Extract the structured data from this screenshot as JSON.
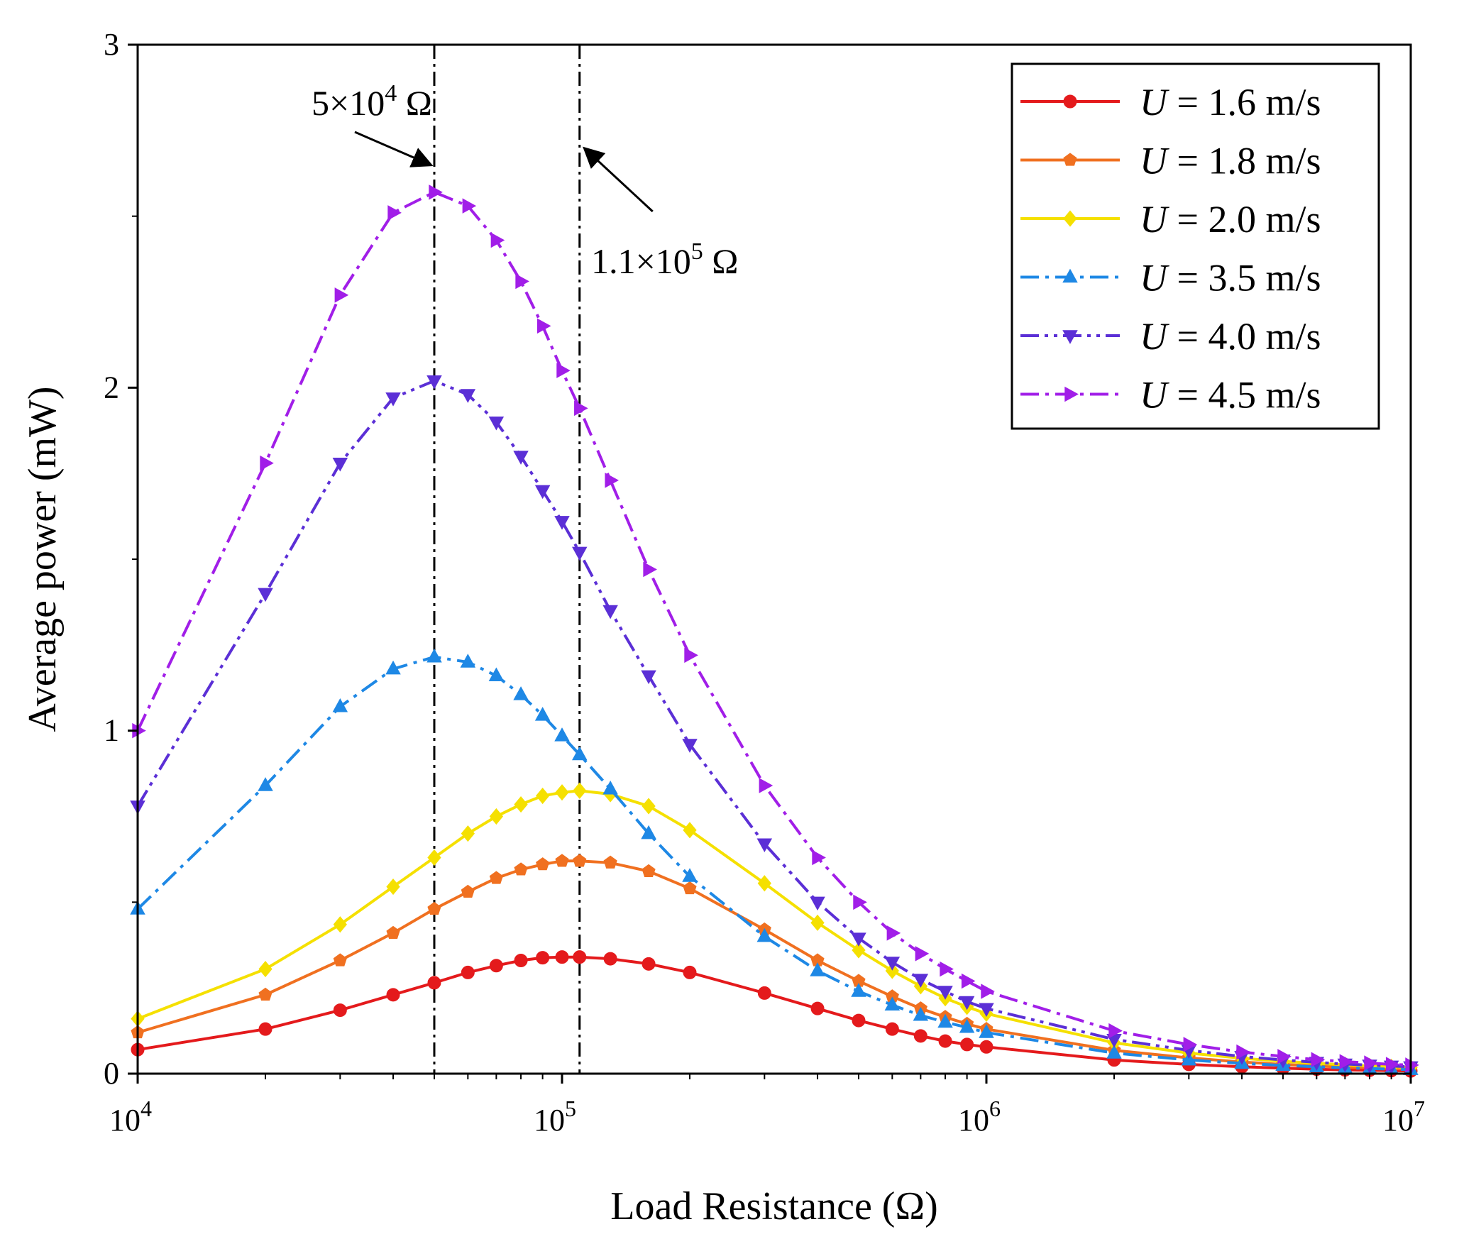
{
  "chart_data": {
    "type": "line",
    "title": "",
    "xlabel": "Load Resistance (Ω)",
    "ylabel": "Average power (mW)",
    "xscale": "log",
    "xlim": [
      10000,
      10000000
    ],
    "ylim": [
      0,
      3
    ],
    "xticks": [
      {
        "value": 10000,
        "base": "10",
        "exp": "4"
      },
      {
        "value": 100000,
        "base": "10",
        "exp": "5"
      },
      {
        "value": 1000000,
        "base": "10",
        "exp": "6"
      },
      {
        "value": 10000000,
        "base": "10",
        "exp": "7"
      }
    ],
    "yticks": [
      {
        "value": 0,
        "label": "0"
      },
      {
        "value": 1,
        "label": "1"
      },
      {
        "value": 2,
        "label": "2"
      },
      {
        "value": 3,
        "label": "3"
      }
    ],
    "grid": false,
    "legend_position": "top-right",
    "x": [
      10000,
      20000,
      30000,
      40000,
      50000,
      60000,
      70000,
      80000,
      90000,
      100000,
      110000,
      130000,
      160000,
      200000,
      300000,
      400000,
      500000,
      600000,
      700000,
      800000,
      900000,
      1000000,
      2000000,
      3000000,
      4000000,
      5000000,
      6000000,
      7000000,
      8000000,
      9000000,
      10000000
    ],
    "series": [
      {
        "prefix": "U",
        "name_rest": " = 1.6 m/s",
        "color": "#e41a1c",
        "dash": "solid",
        "marker": "circle",
        "values": [
          0.07,
          0.13,
          0.185,
          0.23,
          0.265,
          0.295,
          0.315,
          0.33,
          0.338,
          0.34,
          0.34,
          0.335,
          0.32,
          0.295,
          0.235,
          0.19,
          0.155,
          0.13,
          0.11,
          0.095,
          0.085,
          0.078,
          0.04,
          0.027,
          0.02,
          0.016,
          0.013,
          0.011,
          0.01,
          0.009,
          0.008
        ]
      },
      {
        "prefix": "U",
        "name_rest": " = 1.8 m/s",
        "color": "#f07020",
        "dash": "solid",
        "marker": "pentagon",
        "values": [
          0.12,
          0.23,
          0.33,
          0.41,
          0.48,
          0.53,
          0.57,
          0.595,
          0.61,
          0.62,
          0.62,
          0.615,
          0.59,
          0.54,
          0.42,
          0.33,
          0.27,
          0.225,
          0.19,
          0.165,
          0.145,
          0.13,
          0.068,
          0.046,
          0.034,
          0.027,
          0.022,
          0.019,
          0.017,
          0.015,
          0.013
        ]
      },
      {
        "prefix": "U",
        "name_rest": " = 2.0 m/s",
        "color": "#f5e000",
        "dash": "solid",
        "marker": "diamond",
        "values": [
          0.16,
          0.305,
          0.435,
          0.545,
          0.63,
          0.7,
          0.75,
          0.785,
          0.81,
          0.82,
          0.825,
          0.815,
          0.78,
          0.71,
          0.555,
          0.44,
          0.36,
          0.3,
          0.255,
          0.22,
          0.195,
          0.175,
          0.09,
          0.06,
          0.045,
          0.036,
          0.03,
          0.026,
          0.022,
          0.02,
          0.018
        ]
      },
      {
        "prefix": "U",
        "name_rest": " = 3.5 m/s",
        "color": "#1e88e5",
        "dash": "dashdot",
        "marker": "triangle-up",
        "values": [
          0.48,
          0.84,
          1.07,
          1.18,
          1.215,
          1.2,
          1.16,
          1.105,
          1.045,
          0.985,
          0.93,
          0.83,
          0.7,
          0.575,
          0.4,
          0.3,
          0.24,
          0.2,
          0.17,
          0.15,
          0.135,
          0.12,
          0.06,
          0.04,
          0.03,
          0.024,
          0.02,
          0.017,
          0.015,
          0.013,
          0.012
        ]
      },
      {
        "prefix": "U",
        "name_rest": " = 4.0 m/s",
        "color": "#5b2fd6",
        "dash": "dashdotdot",
        "marker": "triangle-down",
        "values": [
          0.78,
          1.4,
          1.78,
          1.97,
          2.02,
          1.98,
          1.9,
          1.8,
          1.7,
          1.61,
          1.52,
          1.35,
          1.16,
          0.96,
          0.67,
          0.5,
          0.395,
          0.325,
          0.275,
          0.24,
          0.21,
          0.19,
          0.1,
          0.068,
          0.05,
          0.04,
          0.033,
          0.028,
          0.025,
          0.022,
          0.02
        ]
      },
      {
        "prefix": "U",
        "name_rest": " = 4.5 m/s",
        "color": "#a11ee8",
        "dash": "dashdot",
        "marker": "triangle-right",
        "values": [
          1.0,
          1.78,
          2.27,
          2.51,
          2.57,
          2.53,
          2.43,
          2.31,
          2.18,
          2.05,
          1.94,
          1.73,
          1.47,
          1.22,
          0.84,
          0.63,
          0.5,
          0.41,
          0.35,
          0.305,
          0.27,
          0.24,
          0.125,
          0.085,
          0.063,
          0.05,
          0.041,
          0.035,
          0.031,
          0.027,
          0.025
        ]
      }
    ],
    "annotations": [
      {
        "x": 50000,
        "label_main": "5×10",
        "label_exp": "4",
        "label_unit": " Ω"
      },
      {
        "x": 110000,
        "label_main": "1.1×10",
        "label_exp": "5",
        "label_unit": " Ω"
      }
    ]
  }
}
